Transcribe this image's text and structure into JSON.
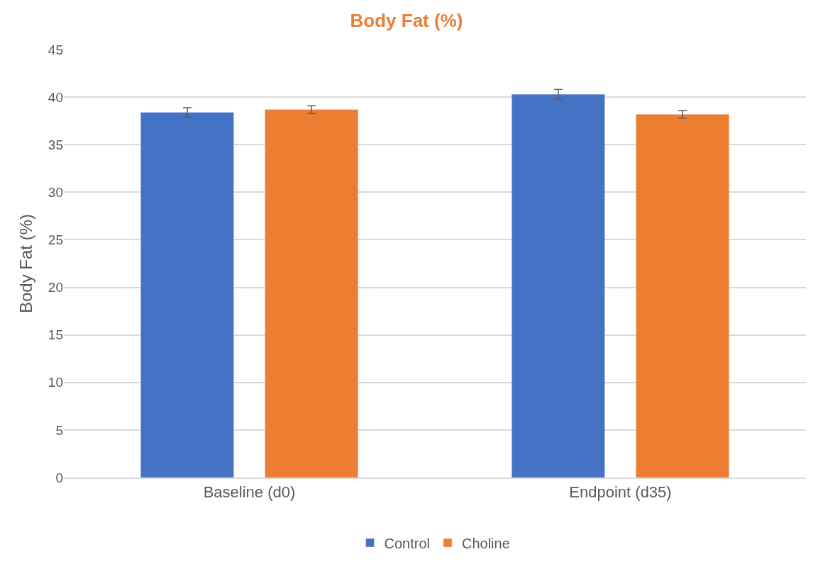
{
  "chart_data": {
    "type": "bar",
    "title": "Body Fat (%)",
    "ylabel": "Body Fat (%)",
    "categories": [
      "Baseline (d0)",
      "Endpoint (d35)"
    ],
    "series": [
      {
        "name": "Control",
        "color": "#4472c4",
        "values": [
          38.4,
          40.3
        ],
        "errors": [
          0.5,
          0.5
        ]
      },
      {
        "name": "Choline",
        "color": "#ed7d31",
        "values": [
          38.7,
          38.2
        ],
        "errors": [
          0.4,
          0.4
        ]
      }
    ],
    "ylim": [
      0,
      45
    ],
    "yticks": [
      0,
      5,
      10,
      15,
      20,
      25,
      30,
      35,
      40,
      45
    ],
    "grid": "y",
    "legend": "bottom"
  }
}
